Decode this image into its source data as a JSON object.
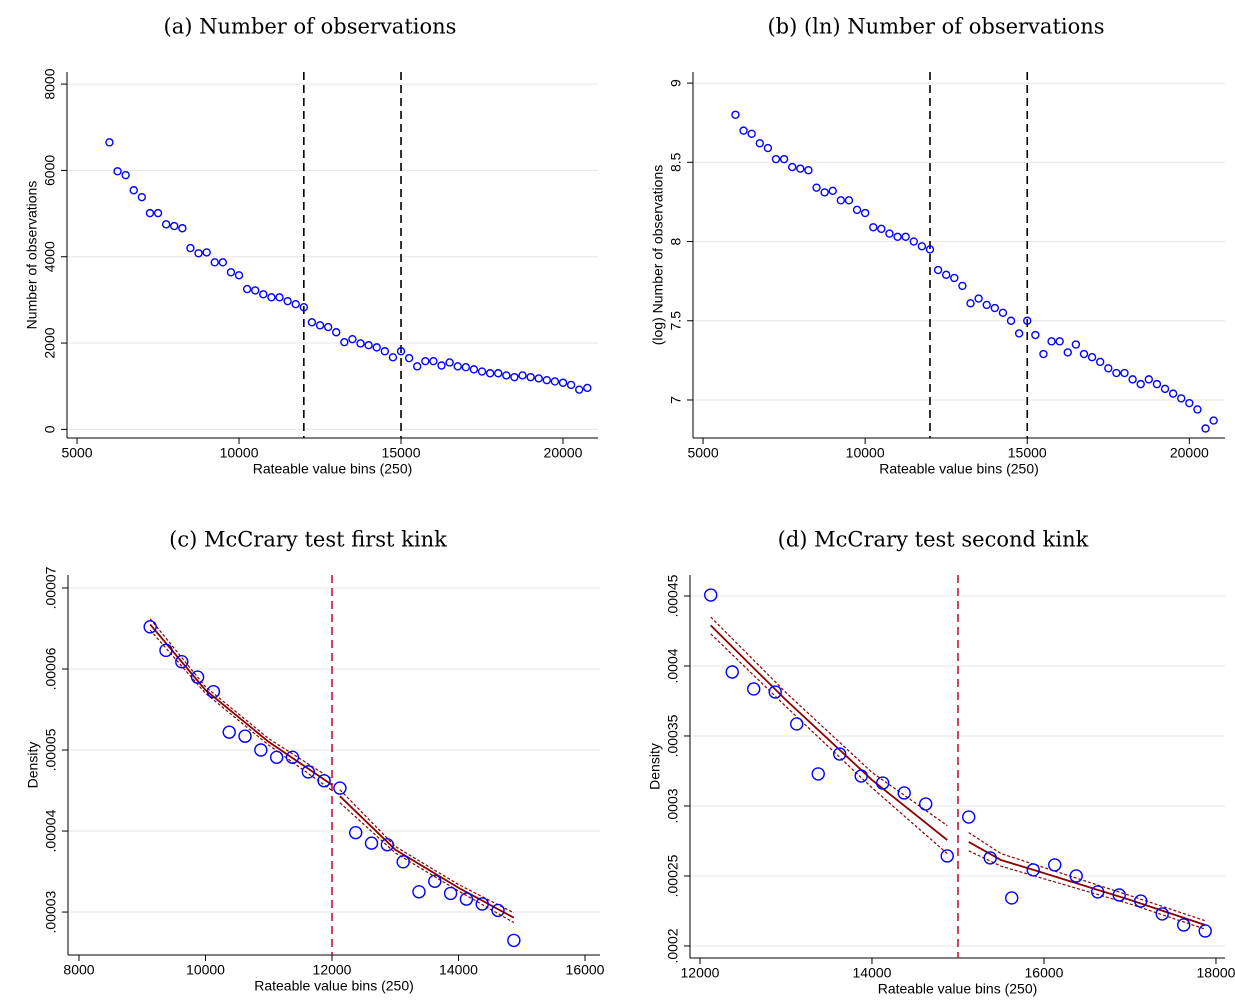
{
  "chart_data": [
    {
      "type": "scatter",
      "title": "(a) Number of observations",
      "xlabel": "Rateable value bins (250)",
      "ylabel": "Number of observations",
      "x": [
        6000,
        6250,
        6500,
        6750,
        7000,
        7250,
        7500,
        7750,
        8000,
        8250,
        8500,
        8750,
        9000,
        9250,
        9500,
        9750,
        10000,
        10250,
        10500,
        10750,
        11000,
        11250,
        11500,
        11750,
        12000,
        12250,
        12500,
        12750,
        13000,
        13250,
        13500,
        13750,
        14000,
        14250,
        14500,
        14750,
        15000,
        15250,
        15500,
        15750,
        16000,
        16250,
        16500,
        16750,
        17000,
        17250,
        17500,
        17750,
        18000,
        18250,
        18500,
        18750,
        19000,
        19250,
        19500,
        19750,
        20000,
        20250,
        20500,
        20750
      ],
      "values": [
        6650,
        5980,
        5890,
        5540,
        5380,
        5010,
        5010,
        4750,
        4710,
        4660,
        4200,
        4080,
        4100,
        3870,
        3870,
        3640,
        3570,
        3250,
        3220,
        3130,
        3060,
        3060,
        2970,
        2900,
        2830,
        2480,
        2410,
        2370,
        2250,
        2020,
        2090,
        1990,
        1950,
        1900,
        1810,
        1670,
        1810,
        1650,
        1460,
        1580,
        1580,
        1480,
        1550,
        1460,
        1440,
        1390,
        1340,
        1300,
        1300,
        1250,
        1210,
        1250,
        1210,
        1180,
        1140,
        1110,
        1080,
        1030,
        920,
        960
      ],
      "color": "#0000ff",
      "xlim": [
        4690,
        21080
      ],
      "ylim": [
        -200,
        8280
      ],
      "xticks": [
        5000,
        10000,
        15000,
        20000
      ],
      "yticks": [
        0,
        2000,
        4000,
        6000,
        8000
      ],
      "grid": true,
      "vlines": [
        12000,
        15000
      ],
      "vline_color": "#000000"
    },
    {
      "type": "scatter",
      "title": "(b) (ln) Number of observations",
      "xlabel": "Rateable value bins (250)",
      "ylabel": "(log) Number of observations",
      "x": [
        6000,
        6250,
        6500,
        6750,
        7000,
        7250,
        7500,
        7750,
        8000,
        8250,
        8500,
        8750,
        9000,
        9250,
        9500,
        9750,
        10000,
        10250,
        10500,
        10750,
        11000,
        11250,
        11500,
        11750,
        12000,
        12250,
        12500,
        12750,
        13000,
        13250,
        13500,
        13750,
        14000,
        14250,
        14500,
        14750,
        15000,
        15250,
        15500,
        15750,
        16000,
        16250,
        16500,
        16750,
        17000,
        17250,
        17500,
        17750,
        18000,
        18250,
        18500,
        18750,
        19000,
        19250,
        19500,
        19750,
        20000,
        20250,
        20500,
        20750
      ],
      "values": [
        8.8,
        8.7,
        8.68,
        8.62,
        8.59,
        8.52,
        8.52,
        8.47,
        8.46,
        8.45,
        8.34,
        8.31,
        8.32,
        8.26,
        8.26,
        8.2,
        8.18,
        8.09,
        8.08,
        8.05,
        8.03,
        8.03,
        8.0,
        7.97,
        7.95,
        7.82,
        7.79,
        7.77,
        7.72,
        7.61,
        7.64,
        7.6,
        7.58,
        7.55,
        7.5,
        7.42,
        7.5,
        7.41,
        7.29,
        7.37,
        7.37,
        7.3,
        7.35,
        7.29,
        7.27,
        7.24,
        7.2,
        7.17,
        7.17,
        7.13,
        7.1,
        7.13,
        7.1,
        7.07,
        7.04,
        7.01,
        6.98,
        6.94,
        6.82,
        6.87
      ],
      "color": "#0000ff",
      "xlim": [
        4690,
        21100
      ],
      "ylim": [
        6.76,
        9.07
      ],
      "xticks": [
        5000,
        10000,
        15000,
        20000
      ],
      "yticks": [
        7,
        7.5,
        8,
        8.5,
        9
      ],
      "grid": true,
      "vlines": [
        12000,
        15000
      ],
      "vline_color": "#000000"
    },
    {
      "type": "scatter",
      "title": "(c) McCrary test first kink",
      "xlabel": "Rateable value bins (250)",
      "ylabel": "Density",
      "x": [
        9125,
        9375,
        9625,
        9875,
        10125,
        10375,
        10625,
        10875,
        11125,
        11375,
        11625,
        11875,
        12125,
        12375,
        12625,
        12875,
        13125,
        13375,
        13625,
        13875,
        14125,
        14375,
        14625,
        14875
      ],
      "values": [
        6.52e-05,
        6.23e-05,
        6.09e-05,
        5.9e-05,
        5.72e-05,
        5.22e-05,
        5.17e-05,
        5e-05,
        4.91e-05,
        4.91e-05,
        4.73e-05,
        4.62e-05,
        4.53e-05,
        3.98e-05,
        3.85e-05,
        3.83e-05,
        3.62e-05,
        3.25e-05,
        3.38e-05,
        3.23e-05,
        3.16e-05,
        3.1e-05,
        3.02e-05,
        2.65e-05
      ],
      "color": "#0000ff",
      "xlim": [
        7826,
        16237
      ],
      "ylim": [
        2.47e-05,
        7.16e-05
      ],
      "xticks": [
        8000,
        10000,
        12000,
        14000,
        16000
      ],
      "yticks": [
        {
          "value": 3e-05,
          "label": ".00003"
        },
        {
          "value": 4e-05,
          "label": ".00004"
        },
        {
          "value": 5e-05,
          "label": ".00005"
        },
        {
          "value": 6e-05,
          "label": ".00006"
        },
        {
          "value": 7e-05,
          "label": ".00007"
        }
      ],
      "grid": true,
      "vlines": [
        12000
      ],
      "vline_color": "#c8143c",
      "fit_color": "#8b0000",
      "fits": [
        {
          "x": [
            9125,
            10000,
            11000,
            12000
          ],
          "values": [
            6.55e-05,
            5.74e-05,
            5.1e-05,
            4.57e-05
          ],
          "lower": [
            6.48e-05,
            5.7e-05,
            5.06e-05,
            4.5e-05
          ],
          "upper": [
            6.62e-05,
            5.78e-05,
            5.14e-05,
            4.64e-05
          ]
        },
        {
          "x": [
            12125,
            13000,
            14000,
            14875
          ],
          "values": [
            4.43e-05,
            3.77e-05,
            3.3e-05,
            2.93e-05
          ],
          "lower": [
            4.35e-05,
            3.73e-05,
            3.26e-05,
            2.87e-05
          ],
          "upper": [
            4.51e-05,
            3.81e-05,
            3.34e-05,
            2.99e-05
          ]
        }
      ]
    },
    {
      "type": "scatter",
      "title": "(d) McCrary test second kink",
      "xlabel": "Rateable value bins (250)",
      "ylabel": "Density",
      "x": [
        12125,
        12375,
        12625,
        12875,
        13125,
        13375,
        13625,
        13875,
        14125,
        14375,
        14625,
        14875,
        15125,
        15375,
        15625,
        15875,
        16125,
        16375,
        16625,
        16875,
        17125,
        17375,
        17625,
        17875
      ],
      "values": [
        0.0004507,
        0.0003957,
        0.0003836,
        0.0003814,
        0.0003586,
        0.0003229,
        0.0003371,
        0.0003214,
        0.0003164,
        0.0003093,
        0.0003014,
        0.0002643,
        0.0002921,
        0.0002629,
        0.0002343,
        0.0002543,
        0.0002579,
        0.00025,
        0.0002386,
        0.0002364,
        0.0002321,
        0.0002229,
        0.000215,
        0.0002107
      ],
      "color": "#0000ff",
      "xlim": [
        11884,
        18105
      ],
      "ylim": [
        0.0001914,
        0.000465
      ],
      "xticks": [
        12000,
        14000,
        16000,
        18000
      ],
      "yticks": [
        {
          "value": 0.0002,
          "label": ".0002"
        },
        {
          "value": 0.00025,
          "label": ".00025"
        },
        {
          "value": 0.0003,
          "label": ".0003"
        },
        {
          "value": 0.00035,
          "label": ".00035"
        },
        {
          "value": 0.0004,
          "label": ".0004"
        },
        {
          "value": 0.00045,
          "label": ".00045"
        }
      ],
      "grid": true,
      "vlines": [
        15000
      ],
      "vline_color": "#c8143c",
      "fit_color": "#8b0000",
      "fits": [
        {
          "x": [
            12125,
            13000,
            14000,
            14875
          ],
          "values": [
            0.000429,
            0.0003757,
            0.0003186,
            0.0002757
          ],
          "lower": [
            0.000423,
            0.000371,
            0.000313,
            0.000266
          ],
          "upper": [
            0.000435,
            0.000381,
            0.000324,
            0.000286
          ]
        },
        {
          "x": [
            15125,
            15500,
            16000,
            17000,
            17875
          ],
          "values": [
            0.0002743,
            0.0002614,
            0.000252,
            0.0002329,
            0.000215
          ],
          "lower": [
            0.000268,
            0.000257,
            0.000248,
            0.00023,
            0.000212
          ],
          "upper": [
            0.000281,
            0.000266,
            0.000256,
            0.000236,
            0.000218
          ]
        }
      ]
    }
  ]
}
